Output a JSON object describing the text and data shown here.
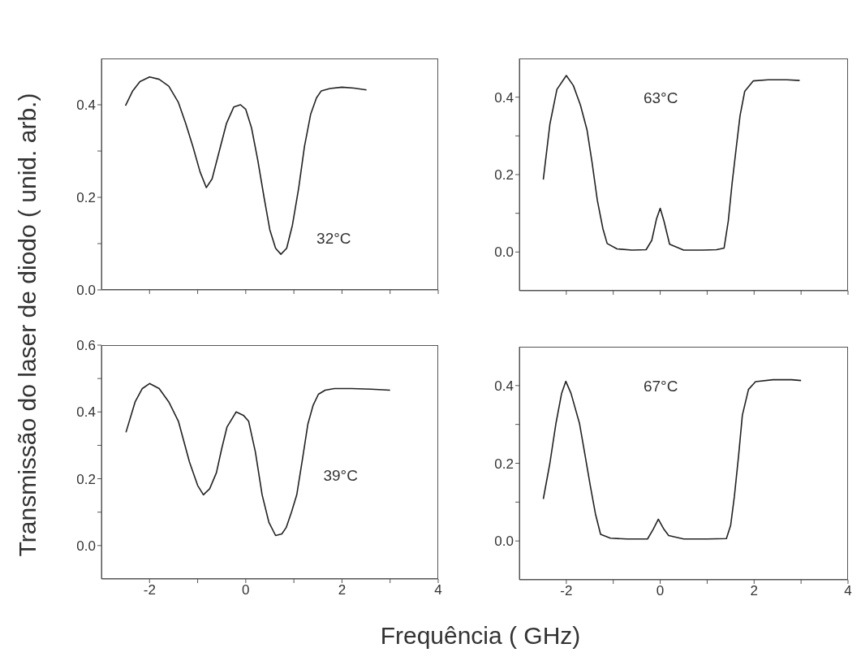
{
  "chart_data": [
    {
      "type": "line",
      "ylabel": "Transmissão do laser de diodo ( unid. arb.)",
      "annotations": [
        "32°C"
      ],
      "tick_labels": "y",
      "xlim": [
        -3,
        4
      ],
      "xticks": [
        -2,
        {
          "value": -1,
          "label": null
        },
        0,
        {
          "value": 1,
          "label": null
        },
        2,
        {
          "value": 3,
          "label": null
        },
        4
      ],
      "ylim": [
        0,
        0.5
      ],
      "yticks": [
        {
          "value": 0,
          "label": "0.0"
        },
        {
          "value": 0.1,
          "label": null
        },
        0.2,
        {
          "value": 0.3,
          "label": null
        },
        0.4
      ],
      "series": [
        {
          "color": "#222222",
          "x": [
            -2.5,
            -2.35,
            -2.2,
            -2.0,
            -1.8,
            -1.6,
            -1.4,
            -1.25,
            -1.1,
            -0.95,
            -0.82,
            -0.7,
            -0.55,
            -0.4,
            -0.25,
            -0.11,
            0.0,
            0.12,
            0.25,
            0.38,
            0.5,
            0.62,
            0.73,
            0.85,
            0.97,
            1.1,
            1.22,
            1.35,
            1.47,
            1.57,
            1.75,
            2.0,
            2.25,
            2.51
          ],
          "values": [
            0.398,
            0.43,
            0.45,
            0.46,
            0.455,
            0.44,
            0.405,
            0.36,
            0.31,
            0.255,
            0.221,
            0.24,
            0.3,
            0.36,
            0.395,
            0.4,
            0.39,
            0.35,
            0.28,
            0.2,
            0.13,
            0.09,
            0.077,
            0.09,
            0.14,
            0.22,
            0.31,
            0.38,
            0.415,
            0.43,
            0.435,
            0.438,
            0.436,
            0.432
          ]
        }
      ]
    },
    {
      "type": "line",
      "annotations": [
        "63°C"
      ],
      "tick_labels": "y",
      "xlim": [
        -3,
        4
      ],
      "xticks": [
        -2,
        {
          "value": -1,
          "label": null
        },
        0,
        {
          "value": 1,
          "label": null
        },
        2,
        {
          "value": 3,
          "label": null
        },
        4
      ],
      "ylim": [
        -0.1,
        0.5
      ],
      "yticks": [
        {
          "value": 0,
          "label": "0.0"
        },
        {
          "value": 0.1,
          "label": null
        },
        0.2,
        {
          "value": 0.3,
          "label": null
        },
        0.4
      ],
      "series": [
        {
          "color": "#222222",
          "x": [
            -2.49,
            -2.35,
            -2.2,
            -2.0,
            -1.85,
            -1.7,
            -1.56,
            -1.45,
            -1.34,
            -1.22,
            -1.13,
            -0.92,
            -0.6,
            -0.3,
            -0.18,
            -0.08,
            0.0,
            0.08,
            0.2,
            0.5,
            0.9,
            1.2,
            1.36,
            1.45,
            1.53,
            1.62,
            1.7,
            1.8,
            1.98,
            2.3,
            2.7,
            2.97
          ],
          "values": [
            0.187,
            0.33,
            0.42,
            0.456,
            0.43,
            0.38,
            0.316,
            0.23,
            0.134,
            0.06,
            0.022,
            0.008,
            0.005,
            0.006,
            0.03,
            0.085,
            0.113,
            0.08,
            0.02,
            0.005,
            0.005,
            0.006,
            0.01,
            0.08,
            0.176,
            0.27,
            0.352,
            0.415,
            0.442,
            0.445,
            0.445,
            0.443
          ]
        }
      ]
    },
    {
      "type": "line",
      "xlabel": "Frequência ( GHz)",
      "annotations": [
        "39°C"
      ],
      "xlim": [
        -3,
        4
      ],
      "xticks": [
        -2,
        {
          "value": -1,
          "label": null
        },
        0,
        {
          "value": 1,
          "label": null
        },
        2,
        {
          "value": 3,
          "label": null
        },
        4
      ],
      "ylim": [
        -0.1,
        0.6
      ],
      "yticks": [
        {
          "value": 0,
          "label": "0.0"
        },
        {
          "value": 0.1,
          "label": null
        },
        0.2,
        {
          "value": 0.3,
          "label": null
        },
        0.4,
        {
          "value": 0.5,
          "label": null
        },
        0.6
      ],
      "series": [
        {
          "color": "#222222",
          "x": [
            -2.49,
            -2.3,
            -2.15,
            -2.0,
            -1.8,
            -1.6,
            -1.4,
            -1.17,
            -1.0,
            -0.88,
            -0.75,
            -0.61,
            -0.5,
            -0.39,
            -0.2,
            -0.05,
            0.06,
            0.2,
            0.34,
            0.48,
            0.62,
            0.75,
            0.84,
            0.95,
            1.06,
            1.18,
            1.29,
            1.4,
            1.51,
            1.65,
            1.84,
            2.2,
            2.6,
            3.0
          ],
          "values": [
            0.339,
            0.43,
            0.47,
            0.485,
            0.47,
            0.43,
            0.372,
            0.25,
            0.18,
            0.152,
            0.17,
            0.218,
            0.29,
            0.355,
            0.4,
            0.39,
            0.372,
            0.28,
            0.152,
            0.07,
            0.03,
            0.035,
            0.054,
            0.1,
            0.152,
            0.26,
            0.363,
            0.42,
            0.453,
            0.465,
            0.47,
            0.47,
            0.468,
            0.465
          ]
        }
      ]
    },
    {
      "type": "line",
      "annotations": [
        "67°C"
      ],
      "xlim": [
        -3,
        4
      ],
      "xticks": [
        -2,
        {
          "value": -1,
          "label": null
        },
        0,
        {
          "value": 1,
          "label": null
        },
        2,
        {
          "value": 3,
          "label": null
        },
        4
      ],
      "ylim": [
        -0.1,
        0.5
      ],
      "yticks": [
        {
          "value": 0,
          "label": "0.0"
        },
        {
          "value": 0.1,
          "label": null
        },
        0.2,
        {
          "value": 0.3,
          "label": null
        },
        0.4
      ],
      "series": [
        {
          "color": "#222222",
          "x": [
            -2.49,
            -2.35,
            -2.22,
            -2.1,
            -2.01,
            -1.9,
            -1.72,
            -1.6,
            -1.49,
            -1.38,
            -1.27,
            -1.06,
            -0.7,
            -0.27,
            -0.15,
            -0.04,
            0.08,
            0.18,
            0.5,
            1.0,
            1.41,
            1.5,
            1.58,
            1.67,
            1.75,
            1.88,
            2.03,
            2.4,
            2.8,
            3.0
          ],
          "values": [
            0.108,
            0.2,
            0.303,
            0.38,
            0.411,
            0.38,
            0.303,
            0.22,
            0.143,
            0.07,
            0.017,
            0.007,
            0.005,
            0.005,
            0.03,
            0.056,
            0.03,
            0.014,
            0.005,
            0.005,
            0.006,
            0.04,
            0.115,
            0.22,
            0.324,
            0.39,
            0.41,
            0.415,
            0.415,
            0.413
          ]
        }
      ]
    }
  ]
}
